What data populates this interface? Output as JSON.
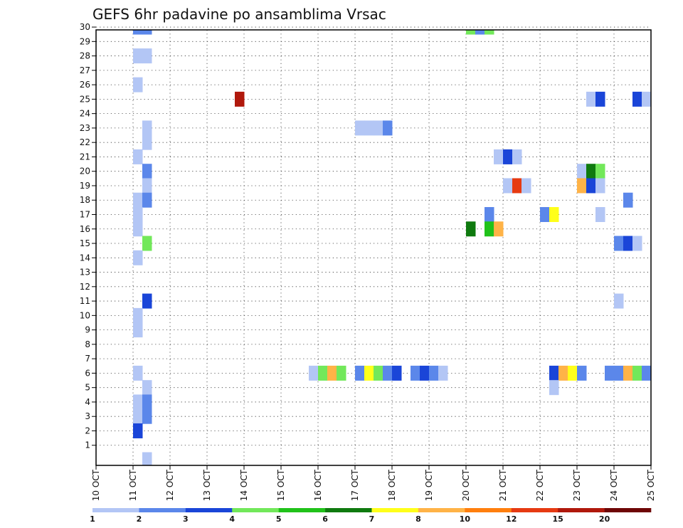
{
  "chart_data": {
    "type": "heatmap",
    "title": "GEFS 6hr padavine po ansamblima Vrsac",
    "x_tick_labels": [
      "10 OCT",
      "11 OCT",
      "12 OCT",
      "13 OCT",
      "14 OCT",
      "15 OCT",
      "16 OCT",
      "17 OCT",
      "18 OCT",
      "19 OCT",
      "20 OCT",
      "21 OCT",
      "22 OCT",
      "23 OCT",
      "24 OCT",
      "25 OCT"
    ],
    "y_range": [
      0,
      30
    ],
    "x_range_days": [
      10,
      25
    ],
    "grid": true,
    "colorbar": {
      "labels": [
        "1",
        "2",
        "3",
        "4",
        "5",
        "6",
        "7",
        "8",
        "10",
        "12",
        "15",
        "20"
      ],
      "colors": [
        "#b3c6f5",
        "#5b87ea",
        "#1a45d8",
        "#72e85a",
        "#21c21a",
        "#0f7a0f",
        "#ffff1a",
        "#ffb347",
        "#ff7f0e",
        "#e63a12",
        "#b0180c",
        "#6e0606"
      ]
    },
    "cells": [
      {
        "member": 30,
        "day": 11.0,
        "value": 2
      },
      {
        "member": 30,
        "day": 11.25,
        "value": 2
      },
      {
        "member": 28,
        "day": 11.0,
        "value": 1
      },
      {
        "member": 28,
        "day": 11.25,
        "value": 1
      },
      {
        "member": 26,
        "day": 11.0,
        "value": 1
      },
      {
        "member": 23,
        "day": 11.25,
        "value": 1
      },
      {
        "member": 22,
        "day": 11.25,
        "value": 1
      },
      {
        "member": 21,
        "day": 11.0,
        "value": 1
      },
      {
        "member": 20,
        "day": 11.25,
        "value": 2
      },
      {
        "member": 19,
        "day": 11.25,
        "value": 1
      },
      {
        "member": 18,
        "day": 11.0,
        "value": 1
      },
      {
        "member": 18,
        "day": 11.25,
        "value": 2
      },
      {
        "member": 17,
        "day": 11.0,
        "value": 1
      },
      {
        "member": 16,
        "day": 11.0,
        "value": 1
      },
      {
        "member": 15,
        "day": 11.25,
        "value": 4
      },
      {
        "member": 14,
        "day": 11.0,
        "value": 1
      },
      {
        "member": 11,
        "day": 11.25,
        "value": 3
      },
      {
        "member": 10,
        "day": 11.0,
        "value": 1
      },
      {
        "member": 9,
        "day": 11.0,
        "value": 1
      },
      {
        "member": 6,
        "day": 11.0,
        "value": 1
      },
      {
        "member": 5,
        "day": 11.25,
        "value": 1
      },
      {
        "member": 4,
        "day": 11.0,
        "value": 1
      },
      {
        "member": 4,
        "day": 11.25,
        "value": 2
      },
      {
        "member": 3,
        "day": 11.0,
        "value": 1
      },
      {
        "member": 3,
        "day": 11.25,
        "value": 2
      },
      {
        "member": 2,
        "day": 11.0,
        "value": 3
      },
      {
        "member": 0,
        "day": 11.25,
        "value": 1
      },
      {
        "member": 25,
        "day": 13.75,
        "value": 15
      },
      {
        "member": 23,
        "day": 17.0,
        "value": 1
      },
      {
        "member": 23,
        "day": 17.25,
        "value": 1
      },
      {
        "member": 23,
        "day": 17.5,
        "value": 1
      },
      {
        "member": 23,
        "day": 17.75,
        "value": 2
      },
      {
        "member": 30,
        "day": 20.0,
        "value": 4
      },
      {
        "member": 30,
        "day": 20.25,
        "value": 2
      },
      {
        "member": 30,
        "day": 20.5,
        "value": 4
      },
      {
        "member": 21,
        "day": 20.75,
        "value": 1
      },
      {
        "member": 21,
        "day": 21.0,
        "value": 3
      },
      {
        "member": 21,
        "day": 21.25,
        "value": 1
      },
      {
        "member": 19,
        "day": 21.0,
        "value": 1
      },
      {
        "member": 19,
        "day": 21.25,
        "value": 12
      },
      {
        "member": 19,
        "day": 21.5,
        "value": 1
      },
      {
        "member": 17,
        "day": 20.5,
        "value": 2
      },
      {
        "member": 16,
        "day": 20.0,
        "value": 6
      },
      {
        "member": 16,
        "day": 20.5,
        "value": 5
      },
      {
        "member": 16,
        "day": 20.75,
        "value": 8
      },
      {
        "member": 17,
        "day": 22.0,
        "value": 2
      },
      {
        "member": 17,
        "day": 22.25,
        "value": 7
      },
      {
        "member": 25,
        "day": 23.25,
        "value": 1
      },
      {
        "member": 25,
        "day": 23.5,
        "value": 3
      },
      {
        "member": 25,
        "day": 24.5,
        "value": 3
      },
      {
        "member": 25,
        "day": 24.75,
        "value": 1
      },
      {
        "member": 20,
        "day": 23.0,
        "value": 1
      },
      {
        "member": 20,
        "day": 23.25,
        "value": 6
      },
      {
        "member": 20,
        "day": 23.5,
        "value": 4
      },
      {
        "member": 19,
        "day": 23.0,
        "value": 8
      },
      {
        "member": 19,
        "day": 23.25,
        "value": 3
      },
      {
        "member": 19,
        "day": 23.5,
        "value": 1
      },
      {
        "member": 18,
        "day": 24.25,
        "value": 2
      },
      {
        "member": 17,
        "day": 23.5,
        "value": 1
      },
      {
        "member": 15,
        "day": 24.0,
        "value": 2
      },
      {
        "member": 15,
        "day": 24.25,
        "value": 3
      },
      {
        "member": 15,
        "day": 24.5,
        "value": 1
      },
      {
        "member": 11,
        "day": 24.0,
        "value": 1
      },
      {
        "member": 6,
        "day": 15.75,
        "value": 1
      },
      {
        "member": 6,
        "day": 16.0,
        "value": 4
      },
      {
        "member": 6,
        "day": 16.25,
        "value": 8
      },
      {
        "member": 6,
        "day": 16.5,
        "value": 4
      },
      {
        "member": 6,
        "day": 17.0,
        "value": 2
      },
      {
        "member": 6,
        "day": 17.25,
        "value": 7
      },
      {
        "member": 6,
        "day": 17.5,
        "value": 4
      },
      {
        "member": 6,
        "day": 17.75,
        "value": 2
      },
      {
        "member": 6,
        "day": 18.0,
        "value": 3
      },
      {
        "member": 6,
        "day": 18.5,
        "value": 2
      },
      {
        "member": 6,
        "day": 18.75,
        "value": 3
      },
      {
        "member": 6,
        "day": 19.0,
        "value": 2
      },
      {
        "member": 6,
        "day": 19.25,
        "value": 1
      },
      {
        "member": 6,
        "day": 22.25,
        "value": 3
      },
      {
        "member": 6,
        "day": 22.5,
        "value": 8
      },
      {
        "member": 6,
        "day": 22.75,
        "value": 7
      },
      {
        "member": 6,
        "day": 23.0,
        "value": 2
      },
      {
        "member": 5,
        "day": 22.25,
        "value": 1
      },
      {
        "member": 6,
        "day": 23.75,
        "value": 2
      },
      {
        "member": 6,
        "day": 24.0,
        "value": 2
      },
      {
        "member": 6,
        "day": 24.25,
        "value": 8
      },
      {
        "member": 6,
        "day": 24.5,
        "value": 4
      },
      {
        "member": 6,
        "day": 24.75,
        "value": 2
      }
    ]
  }
}
